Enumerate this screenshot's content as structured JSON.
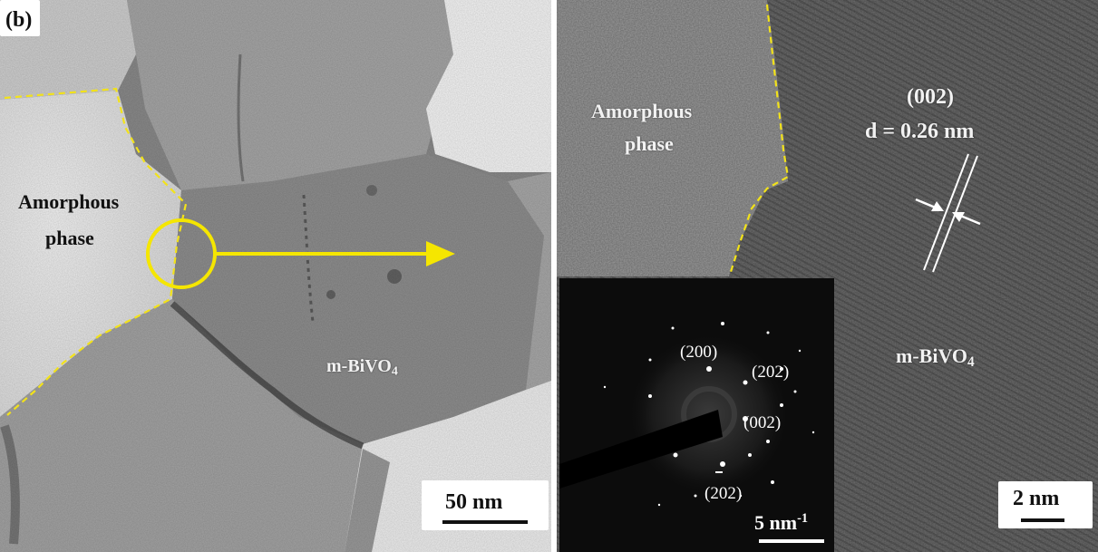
{
  "figure": {
    "panel_label": "(b)",
    "left_panel": {
      "amorphous_label_line1": "Amorphous",
      "amorphous_label_line2": "phase",
      "crystal_label_main": "m-BiVO",
      "crystal_label_sub": "4",
      "scale_bar_label": "50 nm",
      "colors": {
        "boundary_dash": "#f2e21a",
        "circle_arrow": "#f5e600"
      }
    },
    "right_panel": {
      "amorphous_label_line1": "Amorphous",
      "amorphous_label_line2": "phase",
      "plane_label": "(002)",
      "d_spacing_label": "d = 0.26 nm",
      "crystal_label_main": "m-BiVO",
      "crystal_label_sub": "4",
      "scale_bar_label": "2 nm",
      "saed_inset": {
        "spot_labels": [
          "(200)",
          "(202)",
          "(002)",
          "(202)"
        ],
        "scale_bar_main": "5 nm",
        "scale_bar_sup": "-1"
      }
    }
  }
}
